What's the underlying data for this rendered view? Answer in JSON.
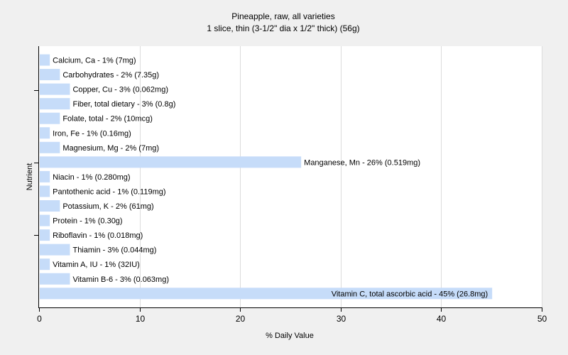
{
  "chart_data": {
    "type": "bar",
    "orientation": "horizontal",
    "title": "Pineapple, raw, all varieties",
    "subtitle": "1 slice, thin (3-1/2\" dia x 1/2\" thick) (56g)",
    "xlabel": "% Daily Value",
    "ylabel": "Nutrient",
    "xlim": [
      0,
      50
    ],
    "xticks": [
      0,
      10,
      20,
      30,
      40,
      50
    ],
    "grid": true,
    "bar_color": "#c6dcf9",
    "categories": [
      "Calcium, Ca",
      "Carbohydrates",
      "Copper, Cu",
      "Fiber, total dietary",
      "Folate, total",
      "Iron, Fe",
      "Magnesium, Mg",
      "Manganese, Mn",
      "Niacin",
      "Pantothenic acid",
      "Potassium, K",
      "Protein",
      "Riboflavin",
      "Thiamin",
      "Vitamin A, IU",
      "Vitamin B-6",
      "Vitamin C, total ascorbic acid"
    ],
    "values": [
      1,
      2,
      3,
      3,
      2,
      1,
      2,
      26,
      1,
      1,
      2,
      1,
      1,
      3,
      1,
      3,
      45
    ],
    "labels": [
      "Calcium, Ca - 1% (7mg)",
      "Carbohydrates - 2% (7.35g)",
      "Copper, Cu - 3% (0.062mg)",
      "Fiber, total dietary - 3% (0.8g)",
      "Folate, total - 2% (10mcg)",
      "Iron, Fe - 1% (0.16mg)",
      "Magnesium, Mg - 2% (7mg)",
      "Manganese, Mn - 26% (0.519mg)",
      "Niacin - 1% (0.280mg)",
      "Pantothenic acid - 1% (0.119mg)",
      "Potassium, K - 2% (61mg)",
      "Protein - 1% (0.30g)",
      "Riboflavin - 1% (0.018mg)",
      "Thiamin - 3% (0.044mg)",
      "Vitamin A, IU - 1% (32IU)",
      "Vitamin B-6 - 3% (0.063mg)",
      "Vitamin C, total ascorbic acid - 45% (26.8mg)"
    ]
  }
}
